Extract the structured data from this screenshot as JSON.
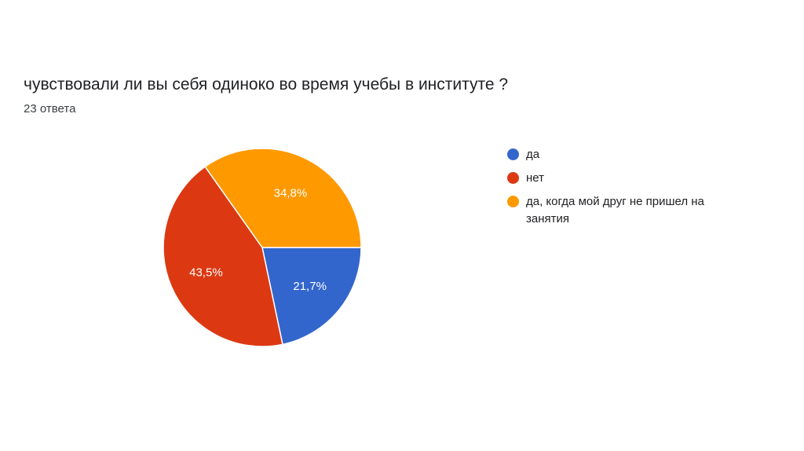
{
  "header": {
    "title": "чувствовали ли вы себя одиноко во время учебы в институте ?",
    "responses": "23 ответа"
  },
  "chart_data": {
    "type": "pie",
    "categories": [
      "да",
      "нет",
      "да, когда мой друг не пришел на занятия"
    ],
    "values": [
      21.7,
      43.5,
      34.8
    ],
    "labels": [
      "21,7%",
      "43,5%",
      "34,8%"
    ],
    "colors": [
      "#3366cc",
      "#dc3912",
      "#ff9900"
    ],
    "start_angle": 90,
    "direction": "clockwise",
    "legend_position": "right"
  },
  "legend": {
    "items": [
      {
        "label": "да",
        "color": "#3366cc"
      },
      {
        "label": "нет",
        "color": "#dc3912"
      },
      {
        "label": "да, когда мой друг не пришел на занятия",
        "color": "#ff9900"
      }
    ]
  }
}
